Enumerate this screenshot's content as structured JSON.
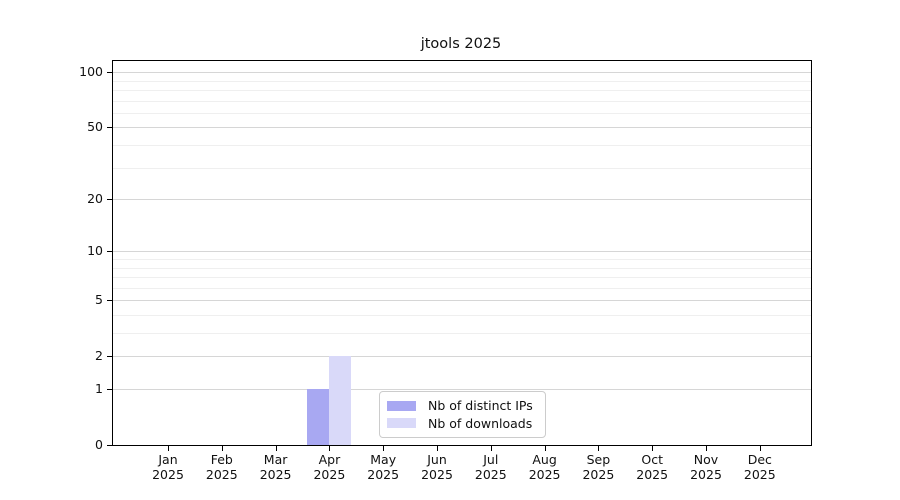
{
  "chart_data": {
    "type": "bar",
    "title": "jtools 2025",
    "categories": [
      "Jan",
      "Feb",
      "Mar",
      "Apr",
      "May",
      "Jun",
      "Jul",
      "Aug",
      "Sep",
      "Oct",
      "Nov",
      "Dec"
    ],
    "category_year_line": "2025",
    "series": [
      {
        "name": "Nb of distinct IPs",
        "color": "#a8a8f2",
        "values": [
          0,
          0,
          0,
          1,
          0,
          0,
          0,
          0,
          0,
          0,
          0,
          0
        ]
      },
      {
        "name": "Nb of downloads",
        "color": "#d9d9f9",
        "values": [
          0,
          0,
          0,
          2,
          0,
          0,
          0,
          0,
          0,
          0,
          0,
          0
        ]
      }
    ],
    "yticks_major": [
      0,
      1,
      2,
      5,
      10,
      20,
      50,
      100
    ],
    "yticks_minor": [
      3,
      4,
      6,
      7,
      8,
      9,
      30,
      40,
      60,
      70,
      80,
      90
    ],
    "yscale": "log1p",
    "ylim": [
      0,
      115
    ],
    "xlabel": "",
    "ylabel": "",
    "grid": "horizontal-only",
    "legend_position": "lower-center",
    "gridline_major_color": "#d6d6d6",
    "gridline_minor_color": "#efefef"
  }
}
